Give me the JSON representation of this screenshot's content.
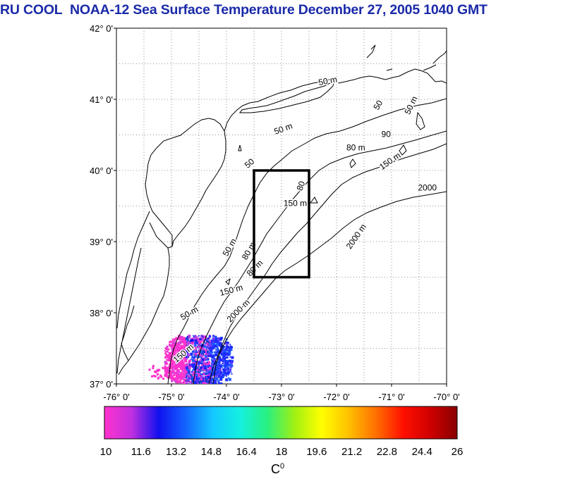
{
  "title": {
    "org": "RU COOL",
    "satellite": "NOAA-12",
    "product": "Sea Surface Temperature",
    "date": "December 27, 2005",
    "time": "1040 GMT"
  },
  "axes": {
    "y_labels": [
      "42° 0'",
      "41° 0'",
      "40° 0'",
      "39° 0'",
      "38° 0'",
      "37° 0'"
    ],
    "x_labels": [
      "-76° 0'",
      "-75° 0'",
      "-74° 0'",
      "-73° 0'",
      "-72° 0'",
      "-71° 0'",
      "-70° 0'"
    ]
  },
  "map": {
    "lon_range": [
      -76,
      -70
    ],
    "lat_range": [
      37,
      42
    ],
    "study_box": {
      "lon_min": -73.5,
      "lon_max": -72.5,
      "lat_min": 38.5,
      "lat_max": 40.0
    },
    "isobath_labels": [
      {
        "text": "50 m",
        "lon": -72.15,
        "lat": 41.22,
        "rot": -10
      },
      {
        "text": "50 m",
        "lon": -72.95,
        "lat": 40.55,
        "rot": -20
      },
      {
        "text": "50",
        "lon": -71.2,
        "lat": 40.9,
        "rot": -60
      },
      {
        "text": "50 m",
        "lon": -70.6,
        "lat": 40.9,
        "rot": -65
      },
      {
        "text": "90",
        "lon": -71.1,
        "lat": 40.47,
        "rot": 0
      },
      {
        "text": "80 m",
        "lon": -71.65,
        "lat": 40.28,
        "rot": 0
      },
      {
        "text": "150 m",
        "lon": -71.0,
        "lat": 40.1,
        "rot": -35
      },
      {
        "text": "2000",
        "lon": -70.35,
        "lat": 39.72,
        "rot": 0
      },
      {
        "text": "50",
        "lon": -73.55,
        "lat": 40.07,
        "rot": -40
      },
      {
        "text": "80",
        "lon": -72.6,
        "lat": 39.77,
        "rot": -70
      },
      {
        "text": "150 m",
        "lon": -72.75,
        "lat": 39.5,
        "rot": 0
      },
      {
        "text": "2000 m",
        "lon": -71.6,
        "lat": 39.05,
        "rot": -55
      },
      {
        "text": "50 m",
        "lon": -73.9,
        "lat": 38.9,
        "rot": -60
      },
      {
        "text": "80 m",
        "lon": -73.55,
        "lat": 38.85,
        "rot": -60
      },
      {
        "text": "80 m",
        "lon": -73.45,
        "lat": 38.6,
        "rot": -45
      },
      {
        "text": "150 m",
        "lon": -73.9,
        "lat": 38.28,
        "rot": -15
      },
      {
        "text": "2000 m",
        "lon": -73.75,
        "lat": 38.0,
        "rot": -45
      },
      {
        "text": "50 m",
        "lon": -74.65,
        "lat": 37.96,
        "rot": -30
      },
      {
        "text": "150 m",
        "lon": -74.75,
        "lat": 37.4,
        "rot": -40
      }
    ]
  },
  "colorbar": {
    "min": 10,
    "max": 26,
    "tick_labels": [
      "10",
      "11.6",
      "13.2",
      "14.8",
      "16.4",
      "18",
      "19.6",
      "21.2",
      "22.8",
      "24.4",
      "26"
    ],
    "units": "C",
    "units_sup": "0",
    "colors": [
      "#ff33cc",
      "#c030e0",
      "#1010ee",
      "#1464ff",
      "#14c8ff",
      "#14f0e0",
      "#28f080",
      "#a0f014",
      "#ffff00",
      "#ffc000",
      "#ff7000",
      "#ff1000",
      "#d00000",
      "#880000"
    ]
  }
}
